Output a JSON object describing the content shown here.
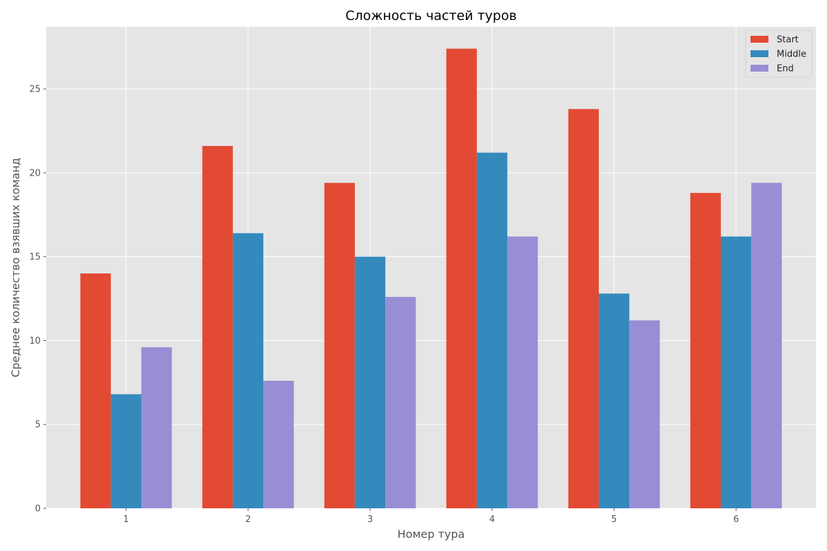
{
  "chart_data": {
    "type": "bar",
    "title": "Сложность частей туров",
    "xlabel": "Номер тура",
    "ylabel": "Среднее количество взявших команд",
    "categories": [
      "1",
      "2",
      "3",
      "4",
      "5",
      "6"
    ],
    "series": [
      {
        "name": "Start",
        "color": "#E24A33",
        "values": [
          14.0,
          21.6,
          19.4,
          27.4,
          23.8,
          18.8
        ]
      },
      {
        "name": "Middle",
        "color": "#348ABD",
        "values": [
          6.8,
          16.4,
          15.0,
          21.2,
          12.8,
          16.2
        ]
      },
      {
        "name": "End",
        "color": "#988ED5",
        "values": [
          9.6,
          7.6,
          12.6,
          16.2,
          11.2,
          19.4
        ]
      }
    ],
    "ylim": [
      0,
      28.7
    ],
    "yticks": [
      0,
      5,
      10,
      15,
      20,
      25
    ],
    "grid": true,
    "legend_position": "top-right",
    "plot_background": "#E5E5E5",
    "grid_color": "#FFFFFF"
  }
}
